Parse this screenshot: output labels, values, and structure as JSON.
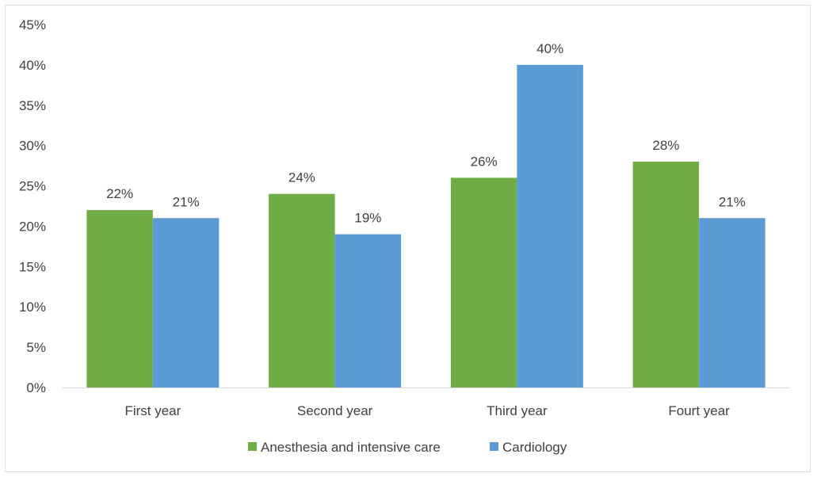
{
  "chart_data": {
    "type": "bar",
    "categories": [
      "First year",
      "Second year",
      "Third year",
      "Fourt year"
    ],
    "series": [
      {
        "name": "Anesthesia and intensive care",
        "color": "#70ad47",
        "values": [
          22,
          24,
          26,
          28
        ],
        "labels": [
          "22%",
          "24%",
          "26%",
          "28%"
        ]
      },
      {
        "name": "Cardiology",
        "color": "#5b9bd5",
        "values": [
          21,
          19,
          40,
          21
        ],
        "labels": [
          "21%",
          "19%",
          "40%",
          "21%"
        ]
      }
    ],
    "ylim": [
      0,
      45
    ],
    "yticks": [
      "0%",
      "5%",
      "10%",
      "15%",
      "20%",
      "25%",
      "30%",
      "35%",
      "40%",
      "45%"
    ],
    "grid": false,
    "legend_position": "bottom",
    "xlabel": "",
    "ylabel": ""
  }
}
